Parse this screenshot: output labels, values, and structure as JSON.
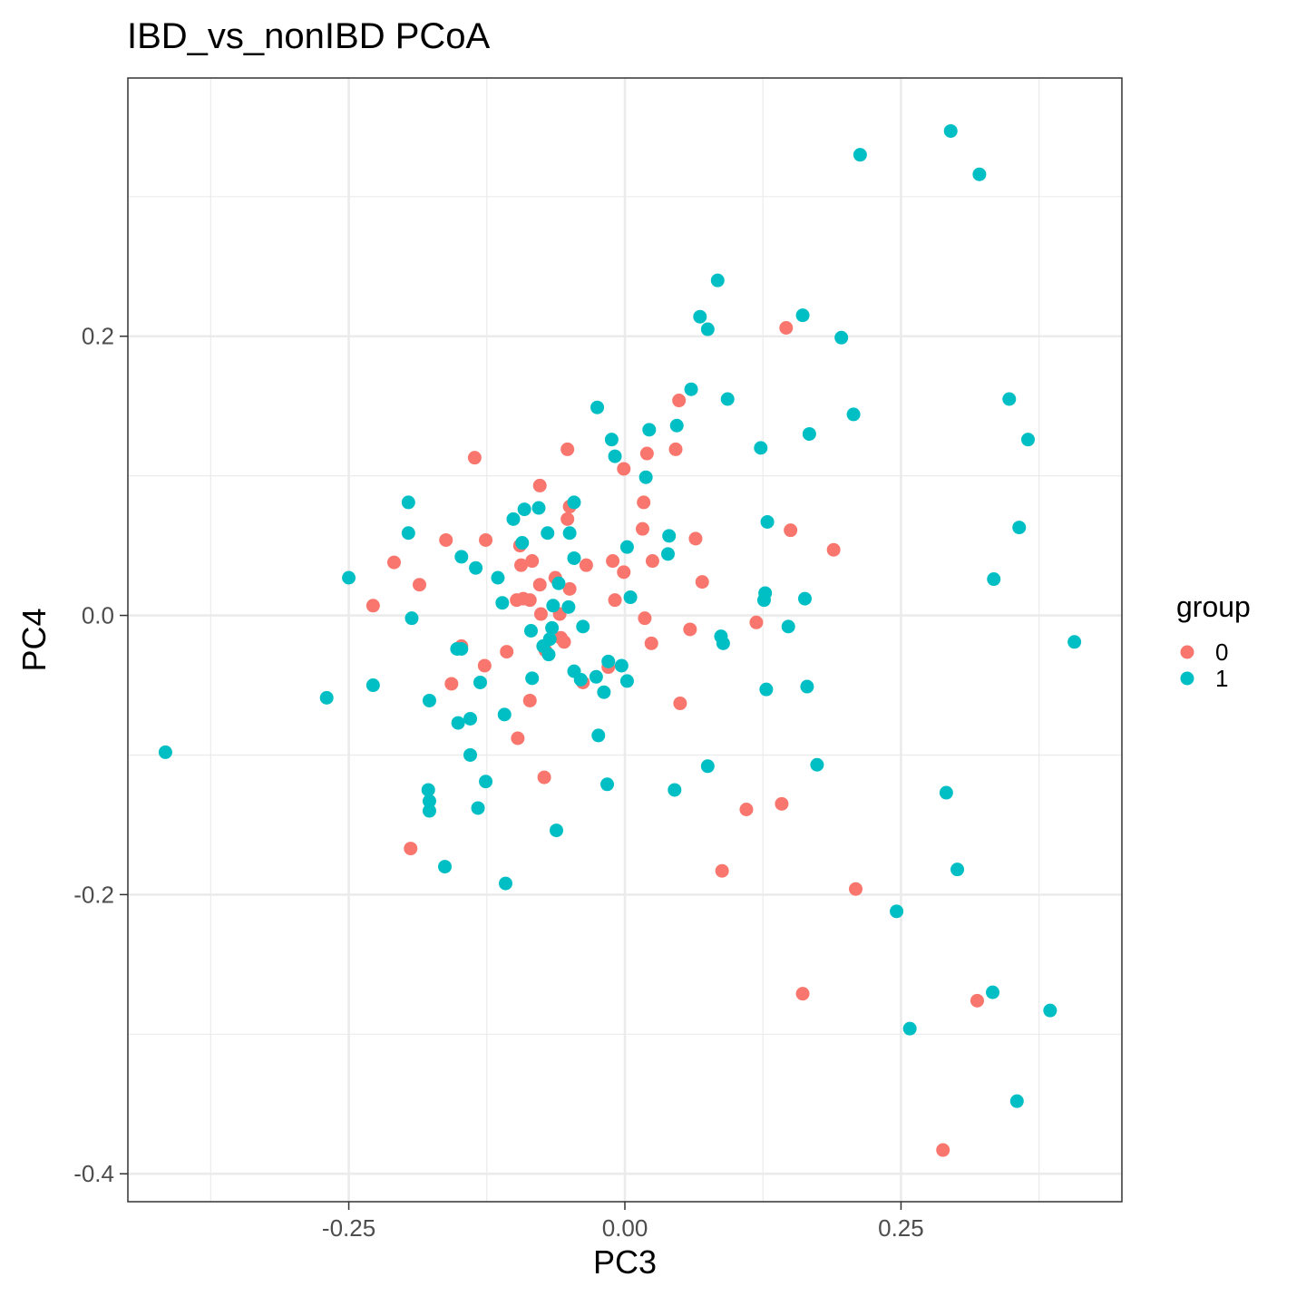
{
  "chart_data": {
    "type": "scatter",
    "title": "IBD_vs_nonIBD PCoA",
    "xlabel": "PC3",
    "ylabel": "PC4",
    "xlim": [
      -0.45,
      0.45
    ],
    "ylim": [
      -0.42,
      0.385
    ],
    "x_ticks": [
      -0.25,
      0.0,
      0.25
    ],
    "x_tick_labels": [
      "-0.25",
      "0.00",
      "0.25"
    ],
    "y_ticks": [
      -0.4,
      -0.2,
      0.0,
      0.2
    ],
    "y_tick_labels": [
      "-0.4",
      "-0.2",
      "0.0",
      "0.2"
    ],
    "grid": true,
    "legend": {
      "title": "group",
      "placement": "right"
    },
    "series": [
      {
        "name": "0",
        "color": "#F8766D",
        "points": [
          [
            -0.136,
            0.113
          ],
          [
            -0.077,
            0.093
          ],
          [
            -0.052,
            0.119
          ],
          [
            0.049,
            0.154
          ],
          [
            0.146,
            0.206
          ],
          [
            0.046,
            0.119
          ],
          [
            0.02,
            0.116
          ],
          [
            -0.001,
            0.105
          ],
          [
            -0.05,
            0.078
          ],
          [
            0.017,
            0.081
          ],
          [
            -0.052,
            0.069
          ],
          [
            -0.162,
            0.054
          ],
          [
            -0.126,
            0.054
          ],
          [
            0.016,
            0.062
          ],
          [
            0.15,
            0.061
          ],
          [
            0.064,
            0.055
          ],
          [
            0.189,
            0.047
          ],
          [
            -0.095,
            0.05
          ],
          [
            -0.209,
            0.038
          ],
          [
            -0.084,
            0.039
          ],
          [
            -0.094,
            0.036
          ],
          [
            0.025,
            0.039
          ],
          [
            -0.011,
            0.039
          ],
          [
            -0.035,
            0.036
          ],
          [
            -0.001,
            0.031
          ],
          [
            -0.063,
            0.027
          ],
          [
            -0.186,
            0.022
          ],
          [
            -0.077,
            0.022
          ],
          [
            0.07,
            0.024
          ],
          [
            -0.05,
            0.019
          ],
          [
            -0.228,
            0.007
          ],
          [
            -0.098,
            0.011
          ],
          [
            -0.086,
            0.011
          ],
          [
            -0.092,
            0.012
          ],
          [
            -0.009,
            0.011
          ],
          [
            -0.076,
            0.001
          ],
          [
            -0.059,
            0.001
          ],
          [
            0.018,
            -0.002
          ],
          [
            -0.072,
            -0.025
          ],
          [
            -0.148,
            -0.022
          ],
          [
            -0.107,
            -0.026
          ],
          [
            -0.058,
            -0.016
          ],
          [
            0.024,
            -0.02
          ],
          [
            0.059,
            -0.01
          ],
          [
            0.119,
            -0.005
          ],
          [
            -0.127,
            -0.036
          ],
          [
            -0.157,
            -0.049
          ],
          [
            -0.038,
            -0.048
          ],
          [
            -0.015,
            -0.037
          ],
          [
            -0.086,
            -0.061
          ],
          [
            0.05,
            -0.063
          ],
          [
            -0.097,
            -0.088
          ],
          [
            -0.073,
            -0.116
          ],
          [
            0.11,
            -0.139
          ],
          [
            0.142,
            -0.135
          ],
          [
            0.088,
            -0.183
          ],
          [
            -0.194,
            -0.167
          ],
          [
            0.209,
            -0.196
          ],
          [
            0.161,
            -0.271
          ],
          [
            0.319,
            -0.276
          ],
          [
            0.288,
            -0.383
          ],
          [
            -0.055,
            -0.019
          ]
        ]
      },
      {
        "name": "1",
        "color": "#00BFC4",
        "points": [
          [
            0.295,
            0.347
          ],
          [
            0.213,
            0.33
          ],
          [
            0.321,
            0.316
          ],
          [
            0.084,
            0.24
          ],
          [
            0.068,
            0.214
          ],
          [
            0.161,
            0.215
          ],
          [
            0.075,
            0.205
          ],
          [
            0.196,
            0.199
          ],
          [
            0.06,
            0.162
          ],
          [
            0.093,
            0.155
          ],
          [
            0.348,
            0.155
          ],
          [
            0.207,
            0.144
          ],
          [
            -0.025,
            0.149
          ],
          [
            0.047,
            0.136
          ],
          [
            0.022,
            0.133
          ],
          [
            -0.012,
            0.126
          ],
          [
            0.167,
            0.13
          ],
          [
            0.365,
            0.126
          ],
          [
            0.123,
            0.12
          ],
          [
            -0.009,
            0.114
          ],
          [
            0.019,
            0.099
          ],
          [
            -0.196,
            0.081
          ],
          [
            -0.046,
            0.081
          ],
          [
            -0.091,
            0.076
          ],
          [
            -0.078,
            0.077
          ],
          [
            -0.101,
            0.069
          ],
          [
            0.129,
            0.067
          ],
          [
            0.357,
            0.063
          ],
          [
            -0.196,
            0.059
          ],
          [
            -0.07,
            0.059
          ],
          [
            -0.05,
            0.059
          ],
          [
            0.04,
            0.057
          ],
          [
            -0.093,
            0.052
          ],
          [
            0.002,
            0.049
          ],
          [
            0.039,
            0.044
          ],
          [
            -0.148,
            0.042
          ],
          [
            -0.046,
            0.041
          ],
          [
            -0.135,
            0.034
          ],
          [
            -0.25,
            0.027
          ],
          [
            -0.115,
            0.027
          ],
          [
            0.334,
            0.026
          ],
          [
            -0.06,
            0.023
          ],
          [
            0.127,
            0.016
          ],
          [
            0.005,
            0.013
          ],
          [
            0.126,
            0.011
          ],
          [
            0.163,
            0.012
          ],
          [
            -0.111,
            0.009
          ],
          [
            -0.065,
            0.007
          ],
          [
            -0.051,
            0.006
          ],
          [
            -0.193,
            -0.002
          ],
          [
            -0.038,
            -0.008
          ],
          [
            -0.066,
            -0.009
          ],
          [
            -0.085,
            -0.011
          ],
          [
            0.148,
            -0.008
          ],
          [
            0.087,
            -0.015
          ],
          [
            -0.068,
            -0.017
          ],
          [
            0.089,
            -0.02
          ],
          [
            -0.074,
            -0.022
          ],
          [
            0.407,
            -0.019
          ],
          [
            -0.152,
            -0.024
          ],
          [
            -0.148,
            -0.024
          ],
          [
            -0.069,
            -0.028
          ],
          [
            -0.015,
            -0.033
          ],
          [
            -0.003,
            -0.036
          ],
          [
            -0.046,
            -0.04
          ],
          [
            -0.026,
            -0.044
          ],
          [
            -0.04,
            -0.046
          ],
          [
            -0.084,
            -0.045
          ],
          [
            0.002,
            -0.047
          ],
          [
            -0.131,
            -0.048
          ],
          [
            -0.228,
            -0.05
          ],
          [
            0.165,
            -0.051
          ],
          [
            0.128,
            -0.053
          ],
          [
            -0.019,
            -0.055
          ],
          [
            -0.27,
            -0.059
          ],
          [
            -0.177,
            -0.061
          ],
          [
            -0.109,
            -0.071
          ],
          [
            -0.14,
            -0.074
          ],
          [
            -0.151,
            -0.077
          ],
          [
            -0.024,
            -0.086
          ],
          [
            -0.416,
            -0.098
          ],
          [
            -0.14,
            -0.1
          ],
          [
            0.075,
            -0.108
          ],
          [
            0.174,
            -0.107
          ],
          [
            -0.126,
            -0.119
          ],
          [
            -0.016,
            -0.121
          ],
          [
            0.045,
            -0.125
          ],
          [
            -0.178,
            -0.125
          ],
          [
            0.291,
            -0.127
          ],
          [
            -0.177,
            -0.133
          ],
          [
            -0.133,
            -0.138
          ],
          [
            -0.177,
            -0.14
          ],
          [
            -0.062,
            -0.154
          ],
          [
            -0.163,
            -0.18
          ],
          [
            0.301,
            -0.182
          ],
          [
            -0.108,
            -0.192
          ],
          [
            0.246,
            -0.212
          ],
          [
            0.333,
            -0.27
          ],
          [
            0.385,
            -0.283
          ],
          [
            0.258,
            -0.296
          ],
          [
            0.355,
            -0.348
          ]
        ]
      }
    ]
  }
}
